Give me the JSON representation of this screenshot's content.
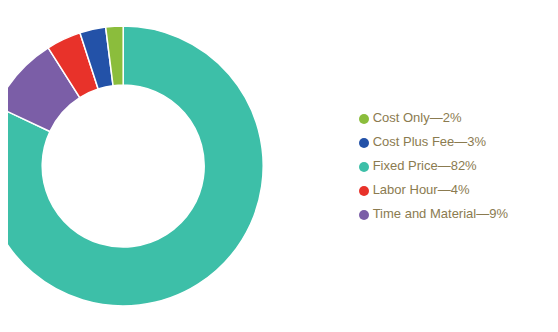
{
  "chart_data": {
    "type": "pie",
    "categories": [
      "Fixed Price—82%",
      "Time and Material—9%",
      "Labor Hour—4%",
      "Cost Plus Fee—3%",
      "Cost Only—2%"
    ],
    "values": [
      82,
      9,
      4,
      3,
      2
    ],
    "colors": [
      "#3DBFA8",
      "#7B5EA7",
      "#E8322A",
      "#2352A8",
      "#8BBD3C"
    ],
    "legend": "right"
  }
}
